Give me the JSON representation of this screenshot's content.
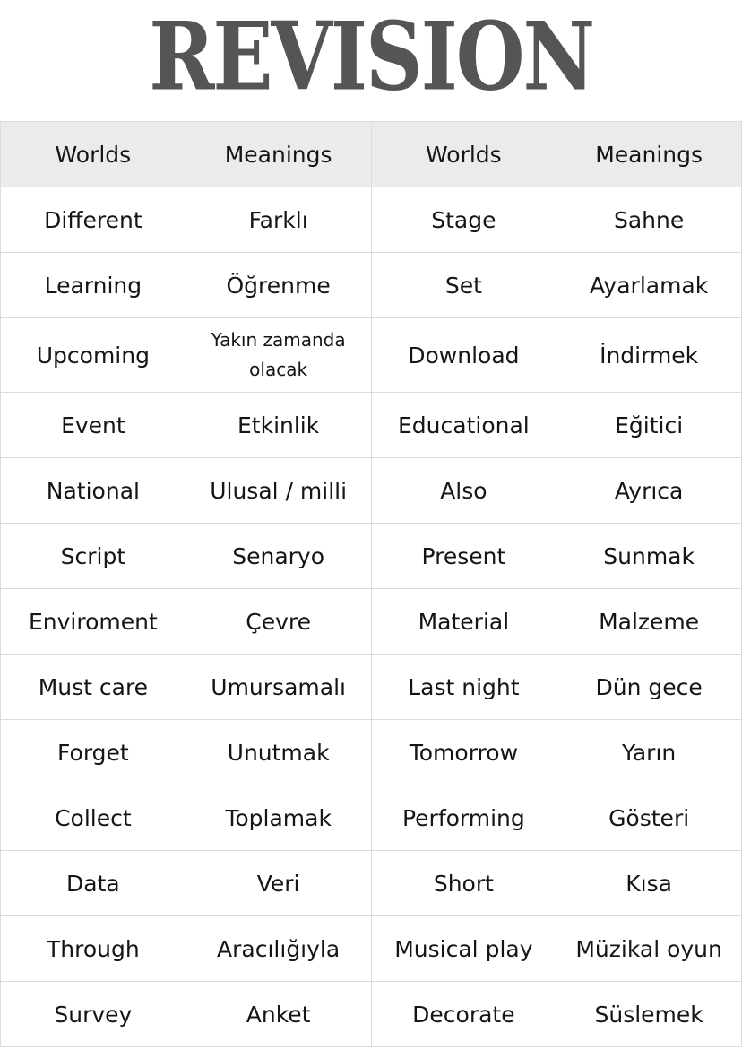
{
  "title": "REVISION",
  "header": [
    "Worlds",
    "Meanings",
    "Worlds",
    "Meanings"
  ],
  "rows": [
    [
      "Different",
      "Farklı",
      "Stage",
      "Sahne"
    ],
    [
      "Learning",
      "Öğrenme",
      "Set",
      "Ayarlamak"
    ],
    [
      "Upcoming",
      "Yakın zamanda olacak",
      "Download",
      "İndirmek"
    ],
    [
      "Event",
      "Etkinlik",
      "Educational",
      "Eğitici"
    ],
    [
      "National",
      "Ulusal / milli",
      "Also",
      "Ayrıca"
    ],
    [
      "Script",
      "Senaryo",
      "Present",
      "Sunmak"
    ],
    [
      "Enviroment",
      "Çevre",
      "Material",
      "Malzeme"
    ],
    [
      "Must care",
      "Umursamalı",
      "Last night",
      "Dün gece"
    ],
    [
      "Forget",
      "Unutmak",
      "Tomorrow",
      "Yarın"
    ],
    [
      "Collect",
      "Toplamak",
      "Performing",
      "Gösteri"
    ],
    [
      "Data",
      "Veri",
      "Short",
      "Kısa"
    ],
    [
      "Through",
      "Aracılığıyla",
      "Musical play",
      "Müzikal oyun"
    ],
    [
      "Survey",
      "Anket",
      "Decorate",
      "Süslemek"
    ]
  ]
}
